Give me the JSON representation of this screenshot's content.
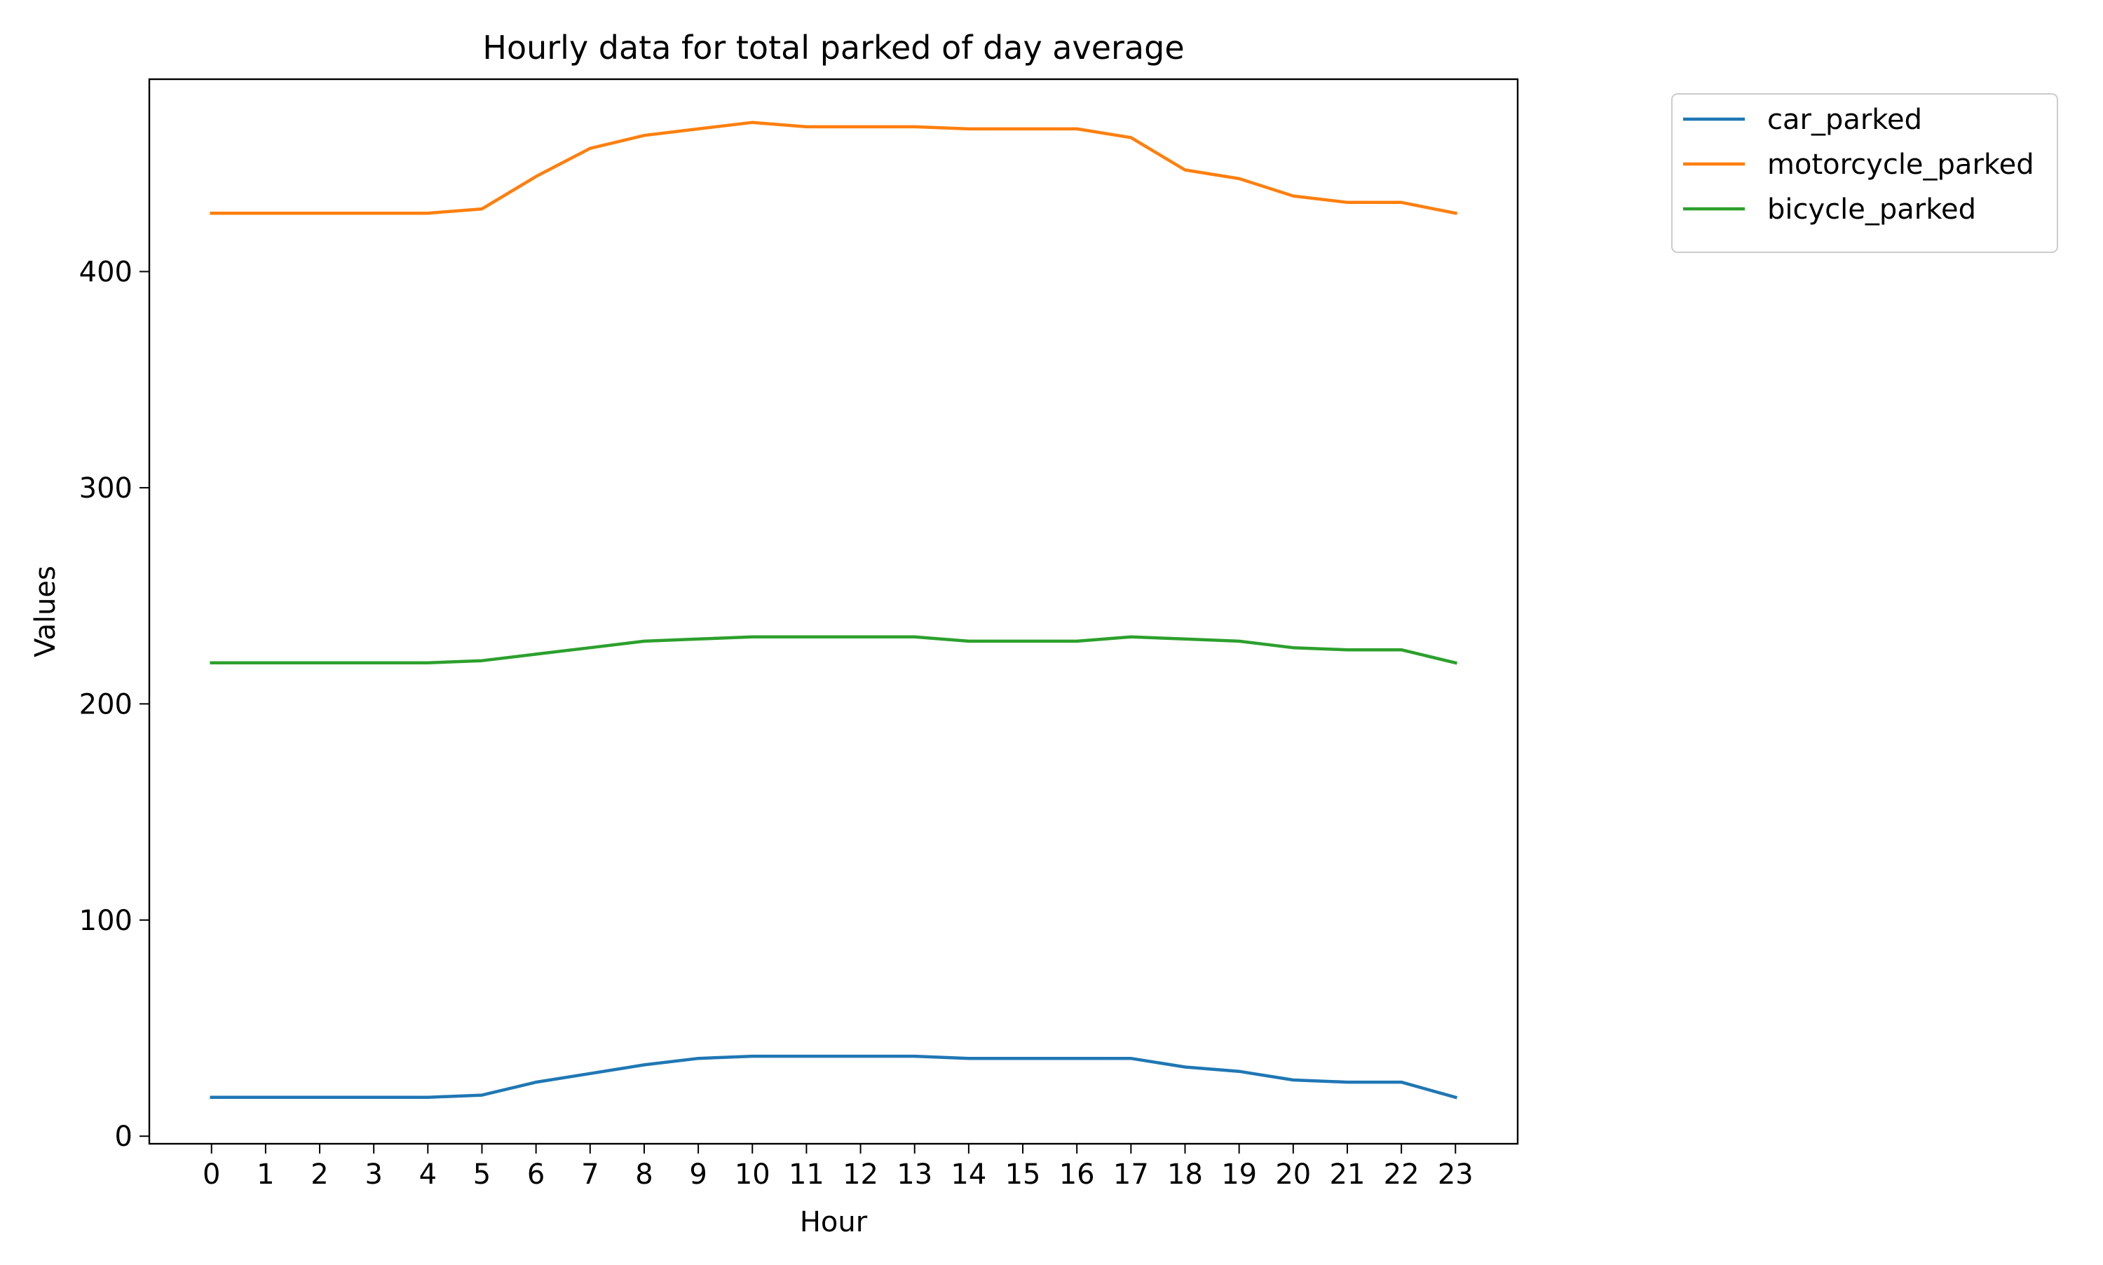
{
  "chart_data": {
    "type": "line",
    "title": "Hourly data for total parked of day average",
    "xlabel": "Hour",
    "ylabel": "Values",
    "x": [
      0,
      1,
      2,
      3,
      4,
      5,
      6,
      7,
      8,
      9,
      10,
      11,
      12,
      13,
      14,
      15,
      16,
      17,
      18,
      19,
      20,
      21,
      22,
      23
    ],
    "xticks": [
      "0",
      "1",
      "2",
      "3",
      "4",
      "5",
      "6",
      "7",
      "8",
      "9",
      "10",
      "11",
      "12",
      "13",
      "14",
      "15",
      "16",
      "17",
      "18",
      "19",
      "20",
      "21",
      "22",
      "23"
    ],
    "yticks": [
      0,
      100,
      200,
      300,
      400
    ],
    "xlim": [
      -1.15,
      24.15
    ],
    "ylim": [
      -3.5,
      489
    ],
    "grid": false,
    "legend_position": "outside top-right",
    "series": [
      {
        "name": "car_parked",
        "color": "#1f77b4",
        "values": [
          18,
          18,
          18,
          18,
          18,
          19,
          25,
          29,
          33,
          36,
          37,
          37,
          37,
          37,
          36,
          36,
          36,
          36,
          32,
          30,
          26,
          25,
          25,
          18
        ]
      },
      {
        "name": "motorcycle_parked",
        "color": "#ff7f0e",
        "values": [
          427,
          427,
          427,
          427,
          427,
          429,
          444,
          457,
          463,
          466,
          469,
          467,
          467,
          467,
          466,
          466,
          466,
          462,
          447,
          443,
          435,
          432,
          432,
          427
        ]
      },
      {
        "name": "bicycle_parked",
        "color": "#2ca02c",
        "values": [
          219,
          219,
          219,
          219,
          219,
          220,
          223,
          226,
          229,
          230,
          231,
          231,
          231,
          231,
          229,
          229,
          229,
          231,
          230,
          229,
          226,
          225,
          225,
          219
        ]
      }
    ]
  }
}
